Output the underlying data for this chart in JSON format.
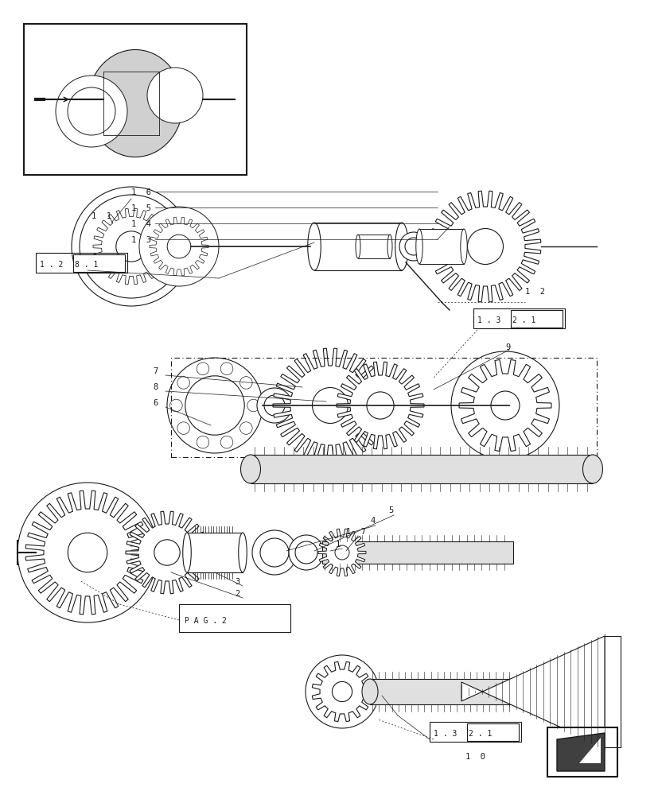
{
  "bg_color": "#ffffff",
  "line_color": "#1a1a1a",
  "fig_width": 8.28,
  "fig_height": 10.0,
  "dpi": 100
}
